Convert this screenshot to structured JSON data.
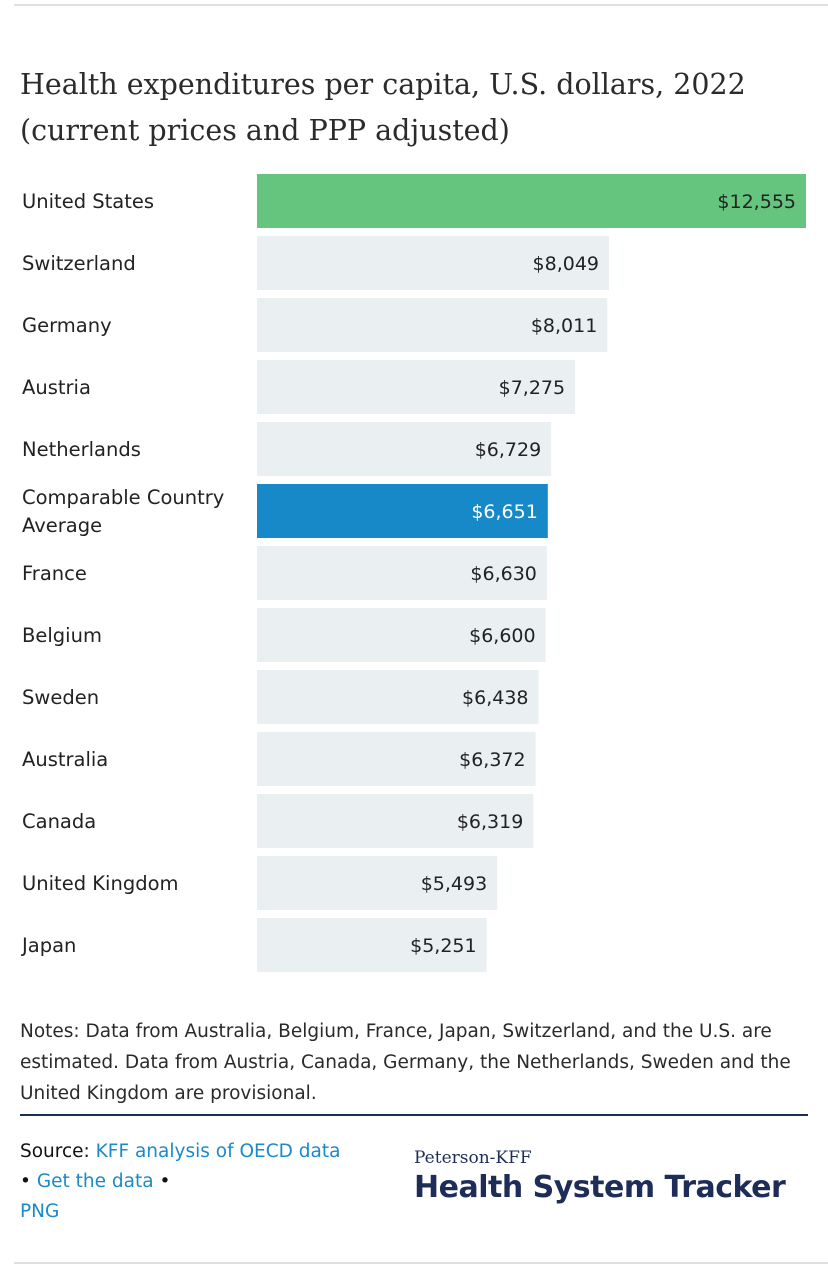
{
  "chart_data": {
    "type": "bar",
    "orientation": "horizontal",
    "title": "Health expenditures per capita, U.S. dollars, 2022 (current prices and PPP adjusted)",
    "categories": [
      "United States",
      "Switzerland",
      "Germany",
      "Austria",
      "Netherlands",
      "Comparable Country Average",
      "France",
      "Belgium",
      "Sweden",
      "Australia",
      "Canada",
      "United Kingdom",
      "Japan"
    ],
    "values": [
      12555,
      8049,
      8011,
      7275,
      6729,
      6651,
      6630,
      6600,
      6438,
      6372,
      6319,
      5493,
      5251
    ],
    "value_labels": [
      "$12,555",
      "$8,049",
      "$8,011",
      "$7,275",
      "$6,729",
      "$6,651",
      "$6,630",
      "$6,600",
      "$6,438",
      "$6,372",
      "$6,319",
      "$5,493",
      "$5,251"
    ],
    "category_lines": [
      [
        "United States"
      ],
      [
        "Switzerland"
      ],
      [
        "Germany"
      ],
      [
        "Austria"
      ],
      [
        "Netherlands"
      ],
      [
        "Comparable Country",
        "Average"
      ],
      [
        "France"
      ],
      [
        "Belgium"
      ],
      [
        "Sweden"
      ],
      [
        "Australia"
      ],
      [
        "Canada"
      ],
      [
        "United Kingdom"
      ],
      [
        "Japan"
      ]
    ],
    "xlim": [
      0,
      12555
    ],
    "grid": false,
    "colors": {
      "highlight_us": "#65c57e",
      "highlight_average": "#1789c9",
      "default": "#eaeff2"
    },
    "highlights": {
      "United States": "highlight_us",
      "Comparable Country Average": "highlight_average"
    }
  },
  "notes": "Notes: Data from Australia, Belgium, France, Japan, Switzerland, and the U.S. are estimated. Data from Austria, Canada, Germany, the Netherlands, Sweden and the United Kingdom are provisional.",
  "source": {
    "label": "Source:",
    "link1": "KFF analysis of OECD data",
    "sep1": "•",
    "link2": "Get the data",
    "sep2": "•",
    "link3": "PNG"
  },
  "brand": {
    "small": "Peterson-KFF",
    "big": "Health System Tracker"
  }
}
